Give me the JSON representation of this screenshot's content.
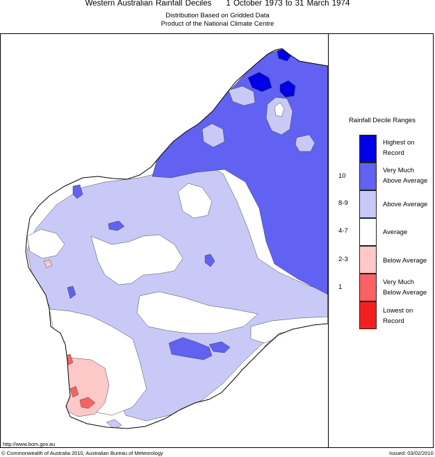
{
  "header": {
    "title": "Western Australian Rainfall Deciles",
    "period": "1 October 1973 to 31 March 1974",
    "subtitle1": "Distribution Based on Gridded Data",
    "subtitle2": "Product of the National Climate Centre"
  },
  "legend": {
    "title": "Rainfall Decile Ranges",
    "categories": [
      {
        "line1": "Highest on",
        "line2": "Record",
        "range": "",
        "color": "#0000e6"
      },
      {
        "line1": "Very Much",
        "line2": "Above Average",
        "range": "10",
        "color": "#6161f2"
      },
      {
        "line1": "Above Average",
        "line2": "",
        "range": "8-9",
        "color": "#c9c9f8"
      },
      {
        "line1": "Average",
        "line2": "",
        "range": "4-7",
        "color": "#ffffff"
      },
      {
        "line1": "Below Average",
        "line2": "",
        "range": "2-3",
        "color": "#fcc8c8"
      },
      {
        "line1": "Very Much",
        "line2": "Below Average",
        "range": "1",
        "color": "#f86262"
      },
      {
        "line1": "Lowest on",
        "line2": "Record",
        "range": "",
        "color": "#f42020"
      }
    ]
  },
  "footer": {
    "url": "http://www.bom.gov.au",
    "copyright": "© Commonwealth of Australia 2010, Australian Bureau of Meteorology",
    "issued": "Issued: 03/02/2010"
  }
}
